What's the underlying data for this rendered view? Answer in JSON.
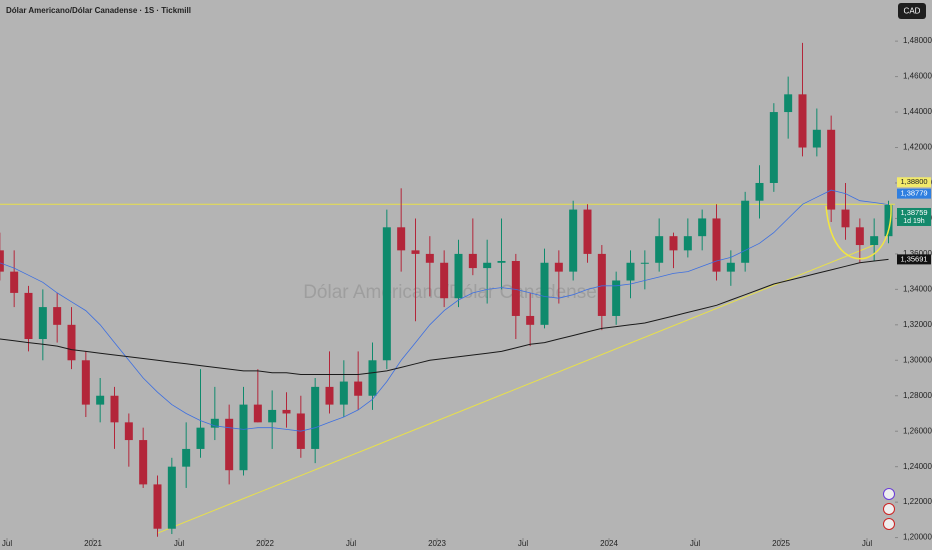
{
  "chart_data": {
    "type": "candlestick",
    "title": "Dólar Americano/Dólar Canadense · 1S · Tickmill",
    "watermark": "Dólar Americano/Dólar Canadense",
    "currency": "CAD",
    "up_color": "#0e8a6c",
    "down_color": "#b3263a",
    "x": [
      "2020-06",
      "2020-07",
      "2020-08",
      "2020-09",
      "2020-10",
      "2020-11",
      "2020-12",
      "2021-01",
      "2021-02",
      "2021-03",
      "2021-04",
      "2021-05",
      "2021-06",
      "2021-07",
      "2021-08",
      "2021-09",
      "2021-10",
      "2021-11",
      "2021-12",
      "2022-01",
      "2022-02",
      "2022-03",
      "2022-04",
      "2022-05",
      "2022-06",
      "2022-07",
      "2022-08",
      "2022-09",
      "2022-10",
      "2022-11",
      "2022-12",
      "2023-01",
      "2023-02",
      "2023-03",
      "2023-04",
      "2023-05",
      "2023-06",
      "2023-07",
      "2023-08",
      "2023-09",
      "2023-10",
      "2023-11",
      "2023-12",
      "2024-01",
      "2024-02",
      "2024-03",
      "2024-04",
      "2024-05",
      "2024-06",
      "2024-07",
      "2024-08",
      "2024-09",
      "2024-10",
      "2024-11",
      "2024-12",
      "2025-01",
      "2025-02",
      "2025-03",
      "2025-04",
      "2025-05",
      "2025-06",
      "2025-07",
      "2025-08"
    ],
    "ohlc": [
      [
        1.362,
        1.372,
        1.345,
        1.35
      ],
      [
        1.35,
        1.362,
        1.33,
        1.338
      ],
      [
        1.338,
        1.342,
        1.305,
        1.312
      ],
      [
        1.312,
        1.34,
        1.3,
        1.33
      ],
      [
        1.33,
        1.338,
        1.31,
        1.32
      ],
      [
        1.32,
        1.33,
        1.295,
        1.3
      ],
      [
        1.3,
        1.305,
        1.268,
        1.275
      ],
      [
        1.275,
        1.29,
        1.265,
        1.28
      ],
      [
        1.28,
        1.285,
        1.25,
        1.265
      ],
      [
        1.265,
        1.27,
        1.24,
        1.255
      ],
      [
        1.255,
        1.262,
        1.228,
        1.23
      ],
      [
        1.23,
        1.235,
        1.2005,
        1.205
      ],
      [
        1.205,
        1.245,
        1.202,
        1.24
      ],
      [
        1.24,
        1.265,
        1.228,
        1.25
      ],
      [
        1.25,
        1.295,
        1.245,
        1.262
      ],
      [
        1.262,
        1.285,
        1.255,
        1.267
      ],
      [
        1.267,
        1.275,
        1.23,
        1.238
      ],
      [
        1.238,
        1.285,
        1.235,
        1.275
      ],
      [
        1.275,
        1.295,
        1.265,
        1.265
      ],
      [
        1.265,
        1.283,
        1.25,
        1.272
      ],
      [
        1.272,
        1.282,
        1.262,
        1.27
      ],
      [
        1.27,
        1.28,
        1.245,
        1.25
      ],
      [
        1.25,
        1.29,
        1.242,
        1.285
      ],
      [
        1.285,
        1.305,
        1.27,
        1.275
      ],
      [
        1.275,
        1.3,
        1.268,
        1.288
      ],
      [
        1.288,
        1.305,
        1.272,
        1.28
      ],
      [
        1.28,
        1.31,
        1.272,
        1.3
      ],
      [
        1.3,
        1.385,
        1.295,
        1.375
      ],
      [
        1.375,
        1.397,
        1.35,
        1.362
      ],
      [
        1.362,
        1.38,
        1.322,
        1.36
      ],
      [
        1.36,
        1.37,
        1.336,
        1.355
      ],
      [
        1.355,
        1.362,
        1.33,
        1.335
      ],
      [
        1.335,
        1.368,
        1.33,
        1.36
      ],
      [
        1.36,
        1.38,
        1.348,
        1.352
      ],
      [
        1.352,
        1.368,
        1.332,
        1.355
      ],
      [
        1.355,
        1.38,
        1.34,
        1.356
      ],
      [
        1.356,
        1.36,
        1.312,
        1.325
      ],
      [
        1.325,
        1.338,
        1.308,
        1.32
      ],
      [
        1.32,
        1.363,
        1.318,
        1.355
      ],
      [
        1.355,
        1.362,
        1.332,
        1.35
      ],
      [
        1.35,
        1.39,
        1.345,
        1.385
      ],
      [
        1.385,
        1.388,
        1.355,
        1.36
      ],
      [
        1.36,
        1.365,
        1.317,
        1.325
      ],
      [
        1.325,
        1.35,
        1.32,
        1.345
      ],
      [
        1.345,
        1.362,
        1.335,
        1.355
      ],
      [
        1.355,
        1.362,
        1.34,
        1.355
      ],
      [
        1.355,
        1.38,
        1.35,
        1.37
      ],
      [
        1.37,
        1.372,
        1.352,
        1.362
      ],
      [
        1.362,
        1.38,
        1.358,
        1.37
      ],
      [
        1.37,
        1.385,
        1.362,
        1.38
      ],
      [
        1.38,
        1.388,
        1.345,
        1.35
      ],
      [
        1.35,
        1.362,
        1.342,
        1.355
      ],
      [
        1.355,
        1.395,
        1.35,
        1.39
      ],
      [
        1.39,
        1.41,
        1.38,
        1.4
      ],
      [
        1.4,
        1.445,
        1.395,
        1.44
      ],
      [
        1.44,
        1.46,
        1.425,
        1.45
      ],
      [
        1.45,
        1.479,
        1.415,
        1.42
      ],
      [
        1.42,
        1.442,
        1.415,
        1.43
      ],
      [
        1.43,
        1.438,
        1.378,
        1.385
      ],
      [
        1.385,
        1.4,
        1.368,
        1.375
      ],
      [
        1.375,
        1.38,
        1.355,
        1.365
      ],
      [
        1.365,
        1.38,
        1.356,
        1.37
      ],
      [
        1.37,
        1.39,
        1.366,
        1.3876
      ]
    ],
    "lines": [
      {
        "color": "#3d6fe0",
        "values": [
          1.355,
          1.352,
          1.348,
          1.344,
          1.338,
          1.333,
          1.328,
          1.32,
          1.31,
          1.3,
          1.29,
          1.282,
          1.275,
          1.27,
          1.266,
          1.263,
          1.262,
          1.261,
          1.262,
          1.262,
          1.261,
          1.26,
          1.262,
          1.265,
          1.268,
          1.272,
          1.278,
          1.288,
          1.3,
          1.31,
          1.32,
          1.328,
          1.334,
          1.338,
          1.34,
          1.341,
          1.34,
          1.338,
          1.336,
          1.335,
          1.337,
          1.34,
          1.342,
          1.342,
          1.343,
          1.345,
          1.347,
          1.349,
          1.35,
          1.353,
          1.356,
          1.358,
          1.362,
          1.366,
          1.372,
          1.38,
          1.388,
          1.392,
          1.396,
          1.394,
          1.39,
          1.389,
          1.3878
        ]
      },
      {
        "color": "#1a1a1a",
        "values": [
          1.312,
          1.311,
          1.31,
          1.309,
          1.308,
          1.306,
          1.305,
          1.304,
          1.303,
          1.302,
          1.301,
          1.3,
          1.299,
          1.298,
          1.297,
          1.296,
          1.295,
          1.294,
          1.294,
          1.293,
          1.293,
          1.292,
          1.292,
          1.292,
          1.292,
          1.292,
          1.293,
          1.294,
          1.296,
          1.298,
          1.3,
          1.301,
          1.302,
          1.303,
          1.304,
          1.305,
          1.307,
          1.309,
          1.31,
          1.312,
          1.314,
          1.316,
          1.318,
          1.319,
          1.32,
          1.321,
          1.323,
          1.325,
          1.327,
          1.329,
          1.331,
          1.334,
          1.337,
          1.34,
          1.343,
          1.345,
          1.347,
          1.349,
          1.351,
          1.353,
          1.355,
          1.356,
          1.3569
        ]
      }
    ],
    "trendline": {
      "color": "#e8e04a",
      "x": [
        "2021-05",
        "2025-07"
      ],
      "y": [
        1.2025,
        1.365
      ]
    },
    "hline": {
      "color": "#e8e04a",
      "value": 1.388
    },
    "price_labels": [
      {
        "value": 1.388,
        "label": "1,38800",
        "color": "#f2ea6a"
      },
      {
        "value": 1.38779,
        "label": "1,38779",
        "color": "#2f7fe0"
      },
      {
        "value": 1.38759,
        "label": "1,38759",
        "color": "#13896b",
        "sub": "1d 19h"
      },
      {
        "value": 1.35691,
        "label": "1,35691",
        "color": "#111111"
      }
    ],
    "ylim": [
      1.193,
      1.5032
    ],
    "yticks": [
      {
        "value": 1.2,
        "label": "1,20000"
      },
      {
        "value": 1.22,
        "label": "1,22000"
      },
      {
        "value": 1.24,
        "label": "1,24000"
      },
      {
        "value": 1.26,
        "label": "1,26000"
      },
      {
        "value": 1.28,
        "label": "1,28000"
      },
      {
        "value": 1.3,
        "label": "1,30000"
      },
      {
        "value": 1.32,
        "label": "1,32000"
      },
      {
        "value": 1.34,
        "label": "1,34000"
      },
      {
        "value": 1.36,
        "label": "1,36000"
      },
      {
        "value": 1.38,
        "label": "1,38000"
      },
      {
        "value": 1.4,
        "label": "1,40000"
      },
      {
        "value": 1.42,
        "label": "1,42000"
      },
      {
        "value": 1.44,
        "label": "1,44000"
      },
      {
        "value": 1.46,
        "label": "1,46000"
      },
      {
        "value": 1.48,
        "label": "1,48000"
      }
    ],
    "xticks": [
      {
        "value": "2020-07",
        "label": "Jul"
      },
      {
        "value": "2021-01",
        "label": "2021"
      },
      {
        "value": "2021-07",
        "label": "Jul"
      },
      {
        "value": "2022-01",
        "label": "2022"
      },
      {
        "value": "2022-07",
        "label": "Jul"
      },
      {
        "value": "2023-01",
        "label": "2023"
      },
      {
        "value": "2023-07",
        "label": "Jul"
      },
      {
        "value": "2024-01",
        "label": "2024"
      },
      {
        "value": "2024-07",
        "label": "Jul"
      },
      {
        "value": "2025-01",
        "label": "2025"
      },
      {
        "value": "2025-07",
        "label": "Jul"
      }
    ]
  }
}
